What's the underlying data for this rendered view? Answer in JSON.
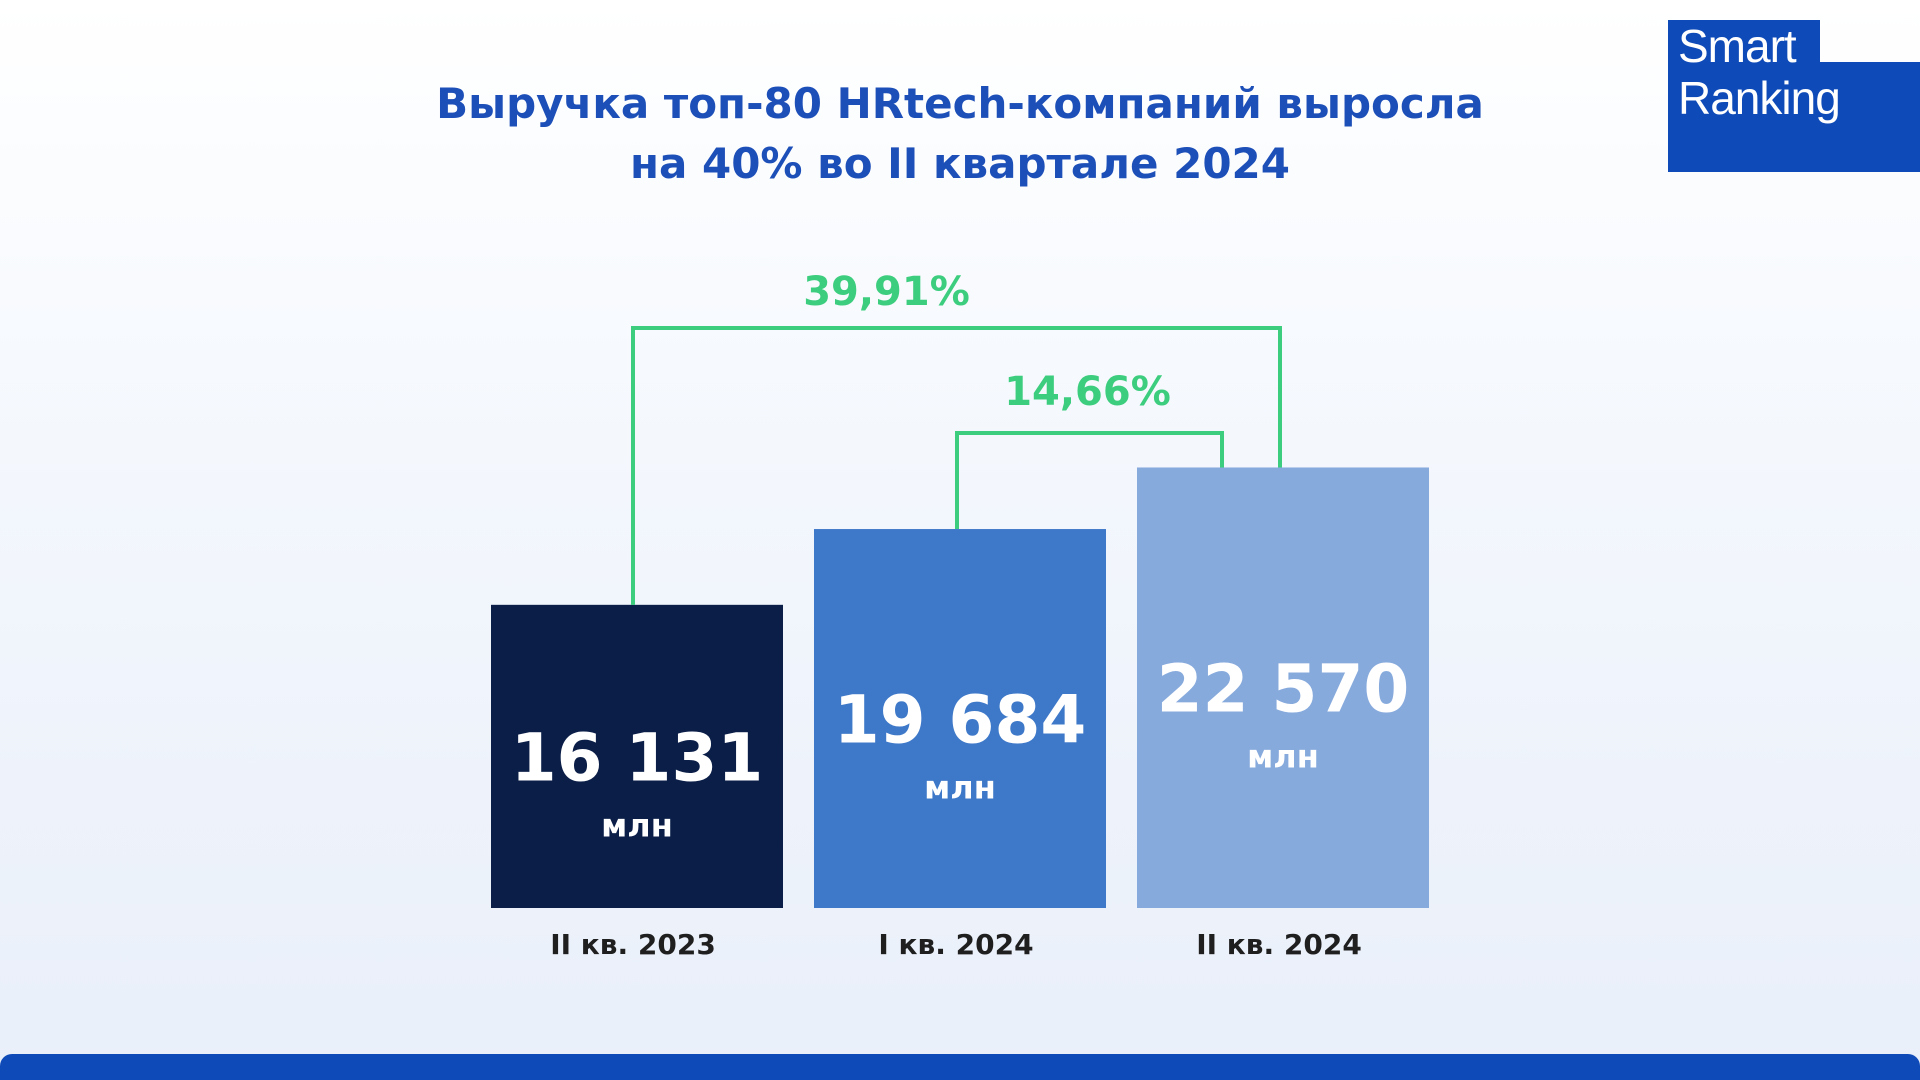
{
  "title_lines": [
    "Выручка топ-80 HRtech-компаний выросла",
    "на 40% во II квартале 2024"
  ],
  "logo": {
    "line1": "Smart",
    "line2": "Ranking"
  },
  "colors": {
    "title": "#1d4fb8",
    "brand": "#0f4bb8",
    "growth": "#3dcd7e",
    "bars": [
      "#0b1e48",
      "#3e78c8",
      "#87aadd"
    ],
    "bar_text": "#ffffff",
    "category_text": "#1f1f1f"
  },
  "chart_data": {
    "type": "bar",
    "categories": [
      "II кв. 2023",
      "I кв. 2024",
      "II кв. 2024"
    ],
    "values": [
      16131,
      19684,
      22570
    ],
    "value_labels": [
      "16 131",
      "19 684",
      "22 570"
    ],
    "unit_label": "млн",
    "annotations": [
      {
        "from": 1,
        "to": 2,
        "label": "14,66%"
      },
      {
        "from": 0,
        "to": 2,
        "label": "39,91%"
      }
    ]
  }
}
